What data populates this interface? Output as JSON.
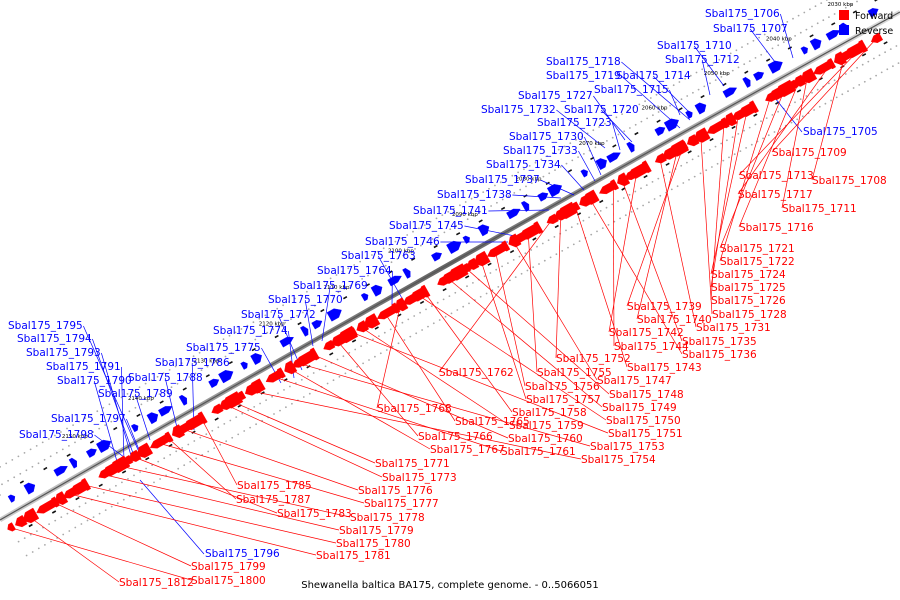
{
  "caption": "Shewanella baltica BA175, complete genome. - 0..5066051",
  "legend": {
    "forward": {
      "label": "Forward",
      "color": "#ff0000"
    },
    "reverse": {
      "label": "Reverse",
      "color": "#0000ff"
    }
  },
  "ticks": [
    "2030 kbp",
    "2040 kbp",
    "2050 kbp",
    "2060 kbp",
    "2070 kbp",
    "2080 kbp",
    "2090 kbp",
    "2100 kbp",
    "2110 kbp",
    "2120 kbp",
    "2130 kbp",
    "2140 kbp",
    "2150 kbp"
  ],
  "reverse_genes": [
    "Sbal175_1706",
    "Sbal175_1707",
    "Sbal175_1710",
    "Sbal175_1712",
    "Sbal175_1718",
    "Sbal175_1719",
    "Sbal175_1714",
    "Sbal175_1715",
    "Sbal175_1727",
    "Sbal175_1732",
    "Sbal175_1720",
    "Sbal175_1723",
    "Sbal175_1730",
    "Sbal175_1733",
    "Sbal175_1734",
    "Sbal175_1737",
    "Sbal175_1738",
    "Sbal175_1741",
    "Sbal175_1745",
    "Sbal175_1746",
    "Sbal175_1763",
    "Sbal175_1764",
    "Sbal175_1769",
    "Sbal175_1770",
    "Sbal175_1772",
    "Sbal175_1774",
    "Sbal175_1775",
    "Sbal175_1786",
    "Sbal175_1788",
    "Sbal175_1789",
    "Sbal175_1795",
    "Sbal175_1794",
    "Sbal175_1793",
    "Sbal175_1791",
    "Sbal175_1790",
    "Sbal175_1797",
    "Sbal175_1798",
    "Sbal175_1705",
    "Sbal175_1796"
  ],
  "forward_genes": [
    "Sbal175_1709",
    "Sbal175_1713",
    "Sbal175_1708",
    "Sbal175_1717",
    "Sbal175_1711",
    "Sbal175_1716",
    "Sbal175_1721",
    "Sbal175_1722",
    "Sbal175_1724",
    "Sbal175_1725",
    "Sbal175_1726",
    "Sbal175_1728",
    "Sbal175_1739",
    "Sbal175_1740",
    "Sbal175_1731",
    "Sbal175_1742",
    "Sbal175_1735",
    "Sbal175_1744",
    "Sbal175_1736",
    "Sbal175_1743",
    "Sbal175_1752",
    "Sbal175_1762",
    "Sbal175_1755",
    "Sbal175_1747",
    "Sbal175_1756",
    "Sbal175_1757",
    "Sbal175_1748",
    "Sbal175_1749",
    "Sbal175_1758",
    "Sbal175_1750",
    "Sbal175_1768",
    "Sbal175_1765",
    "Sbal175_1759",
    "Sbal175_1751",
    "Sbal175_1766",
    "Sbal175_1760",
    "Sbal175_1753",
    "Sbal175_1767",
    "Sbal175_1761",
    "Sbal175_1754",
    "Sbal175_1771",
    "Sbal175_1773",
    "Sbal175_1785",
    "Sbal175_1776",
    "Sbal175_1787",
    "Sbal175_1777",
    "Sbal175_1783",
    "Sbal175_1778",
    "Sbal175_1779",
    "Sbal175_1780",
    "Sbal175_1781",
    "Sbal175_1799",
    "Sbal175_1812",
    "Sbal175_1800"
  ]
}
